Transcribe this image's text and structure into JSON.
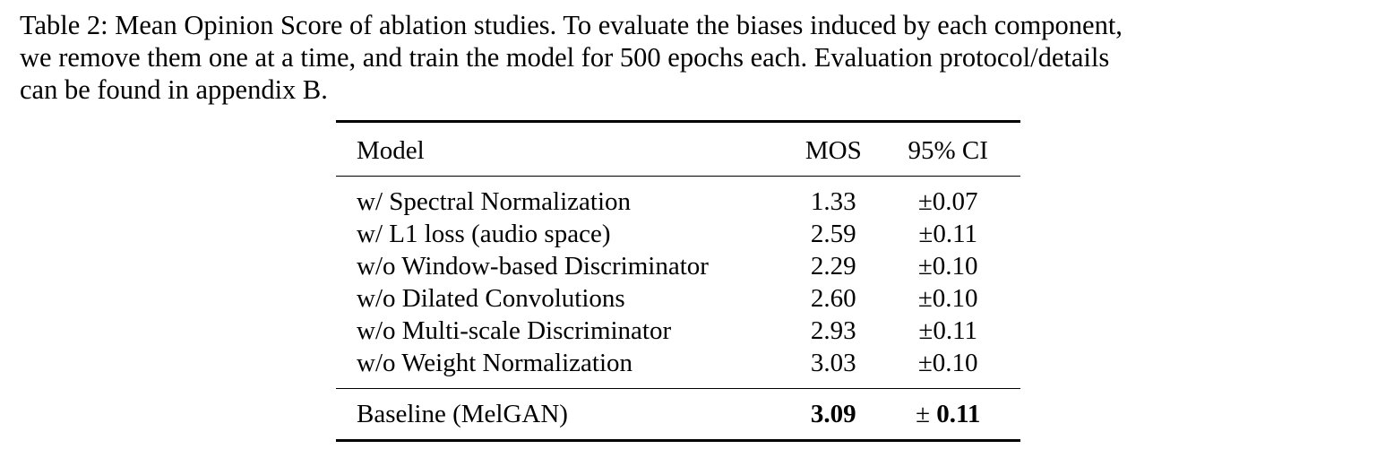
{
  "caption": {
    "line1": "Table 2: Mean Opinion Score of ablation studies. To evaluate the biases induced by each component,",
    "line2": "we remove them one at a time, and train the model for 500 epochs each. Evaluation protocol/details",
    "line3": "can be found in appendix B."
  },
  "table": {
    "headers": {
      "model": "Model",
      "mos": "MOS",
      "ci": "95% CI"
    },
    "rows": [
      {
        "model": "w/ Spectral Normalization",
        "mos": "1.33",
        "ci": "±0.07"
      },
      {
        "model": "w/ L1 loss (audio space)",
        "mos": "2.59",
        "ci": "±0.11"
      },
      {
        "model": "w/o Window-based Discriminator",
        "mos": "2.29",
        "ci": "±0.10"
      },
      {
        "model": "w/o Dilated Convolutions",
        "mos": "2.60",
        "ci": "±0.10"
      },
      {
        "model": "w/o Multi-scale Discriminator",
        "mos": "2.93",
        "ci": "±0.11"
      },
      {
        "model": "w/o Weight Normalization",
        "mos": "3.03",
        "ci": "±0.10"
      }
    ],
    "baseline": {
      "model": "Baseline (MelGAN)",
      "mos": "3.09",
      "ci_sign": "±",
      "ci_value": "0.11"
    }
  }
}
